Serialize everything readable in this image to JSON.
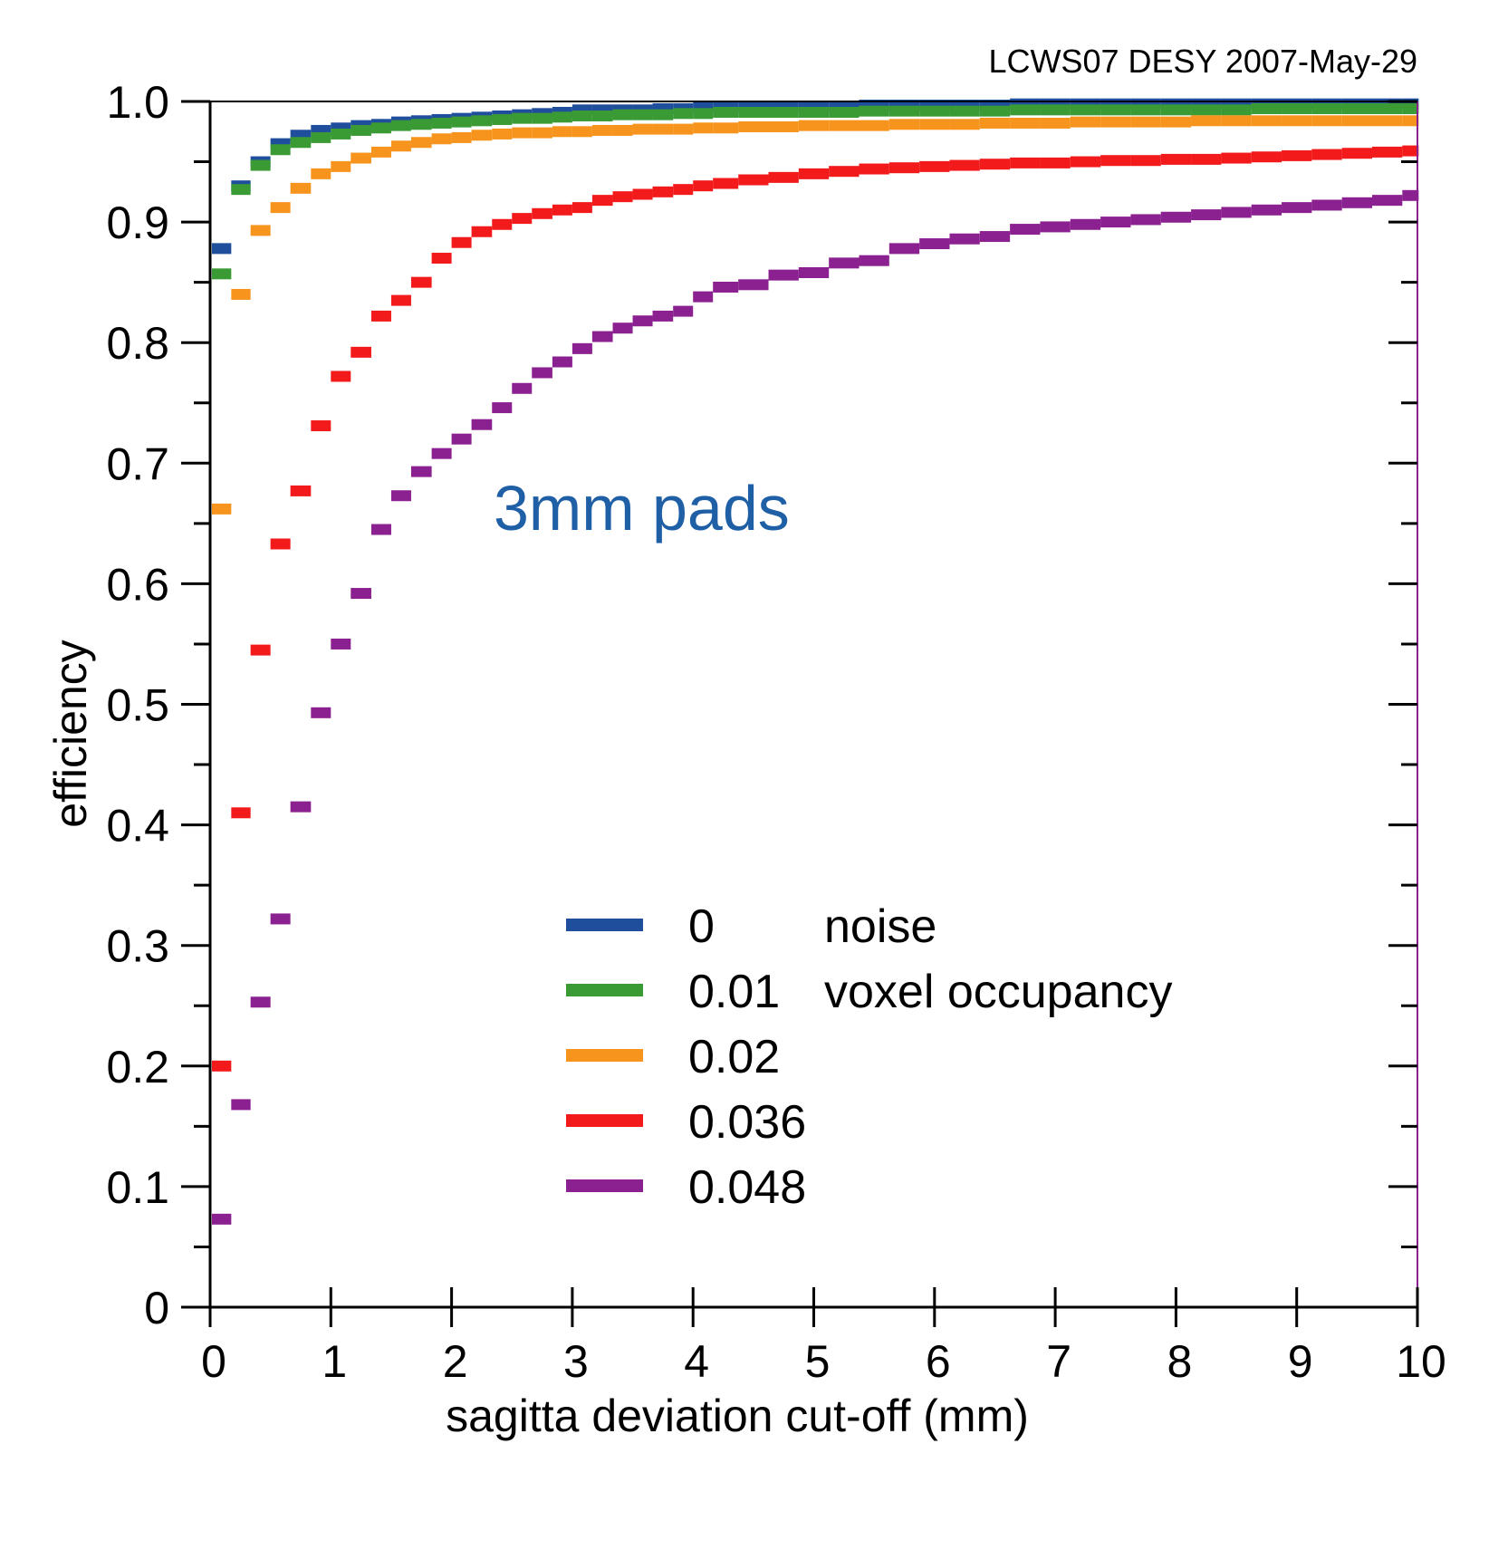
{
  "header": {
    "text": "LCWS07 DESY 2007-May-29"
  },
  "annotation": {
    "text": "3mm pads",
    "color": "#1F5FA6"
  },
  "chart_data": {
    "type": "scatter",
    "title": "",
    "xlabel": "sagitta deviation cut-off (mm)",
    "ylabel": "efficiency",
    "xlim": [
      0,
      10
    ],
    "ylim": [
      0,
      1.0
    ],
    "x_ticks": [
      "0",
      "1",
      "2",
      "3",
      "4",
      "5",
      "6",
      "7",
      "8",
      "9",
      "10"
    ],
    "y_ticks": [
      "0",
      "0.1",
      "0.2",
      "0.3",
      "0.4",
      "0.5",
      "0.6",
      "0.7",
      "0.8",
      "0.9",
      "1.0"
    ],
    "grid": false,
    "legend_position": "bottom-center",
    "legend_header": {
      "value": "0",
      "label": "noise",
      "label2": "voxel occupancy"
    },
    "x": [
      0.1,
      0.25,
      0.42,
      0.58,
      0.75,
      0.92,
      1.08,
      1.25,
      1.42,
      1.58,
      1.75,
      1.92,
      2.08,
      2.25,
      2.42,
      2.58,
      2.75,
      2.92,
      3.08,
      3.25,
      3.42,
      3.58,
      3.75,
      3.92,
      4.08,
      4.25,
      4.5,
      4.75,
      5.0,
      5.25,
      5.5,
      5.75,
      6.0,
      6.25,
      6.5,
      6.75,
      7.0,
      7.25,
      7.5,
      7.75,
      8.0,
      8.25,
      8.5,
      8.75,
      9.0,
      9.25,
      9.5,
      9.75,
      10.0
    ],
    "series": [
      {
        "name": "0",
        "color": "#1F4E9C",
        "values": [
          0.878,
          0.93,
          0.95,
          0.965,
          0.972,
          0.976,
          0.978,
          0.98,
          0.981,
          0.983,
          0.984,
          0.985,
          0.986,
          0.987,
          0.988,
          0.989,
          0.99,
          0.991,
          0.993,
          0.993,
          0.993,
          0.993,
          0.994,
          0.994,
          0.995,
          0.995,
          0.996,
          0.996,
          0.996,
          0.996,
          0.997,
          0.997,
          0.997,
          0.997,
          0.997,
          0.998,
          0.998,
          0.998,
          0.998,
          0.998,
          0.998,
          0.998,
          0.998,
          0.998,
          0.998,
          0.998,
          0.998,
          0.998,
          0.998
        ]
      },
      {
        "name": "0.01",
        "color": "#3A9B35",
        "values": [
          0.857,
          0.927,
          0.947,
          0.96,
          0.966,
          0.97,
          0.973,
          0.976,
          0.978,
          0.98,
          0.981,
          0.982,
          0.983,
          0.984,
          0.985,
          0.986,
          0.986,
          0.987,
          0.988,
          0.988,
          0.989,
          0.989,
          0.989,
          0.99,
          0.99,
          0.991,
          0.991,
          0.991,
          0.991,
          0.991,
          0.992,
          0.992,
          0.992,
          0.992,
          0.992,
          0.993,
          0.993,
          0.993,
          0.993,
          0.993,
          0.993,
          0.993,
          0.993,
          0.994,
          0.994,
          0.994,
          0.994,
          0.994,
          0.994
        ]
      },
      {
        "name": "0.02",
        "color": "#F7941D",
        "values": [
          0.662,
          0.84,
          0.893,
          0.912,
          0.928,
          0.94,
          0.946,
          0.953,
          0.958,
          0.963,
          0.966,
          0.969,
          0.97,
          0.972,
          0.973,
          0.974,
          0.974,
          0.975,
          0.975,
          0.976,
          0.976,
          0.977,
          0.977,
          0.977,
          0.978,
          0.978,
          0.979,
          0.979,
          0.98,
          0.98,
          0.98,
          0.981,
          0.981,
          0.981,
          0.982,
          0.982,
          0.982,
          0.983,
          0.983,
          0.983,
          0.983,
          0.984,
          0.984,
          0.984,
          0.984,
          0.984,
          0.984,
          0.984,
          0.984
        ]
      },
      {
        "name": "0.036",
        "color": "#F21A1A",
        "values": [
          0.2,
          0.41,
          0.545,
          0.633,
          0.677,
          0.731,
          0.772,
          0.792,
          0.822,
          0.835,
          0.85,
          0.87,
          0.883,
          0.892,
          0.898,
          0.903,
          0.907,
          0.91,
          0.912,
          0.918,
          0.921,
          0.923,
          0.925,
          0.927,
          0.93,
          0.932,
          0.935,
          0.937,
          0.94,
          0.942,
          0.944,
          0.945,
          0.946,
          0.947,
          0.948,
          0.949,
          0.949,
          0.95,
          0.951,
          0.951,
          0.952,
          0.952,
          0.953,
          0.954,
          0.955,
          0.956,
          0.957,
          0.958,
          0.959
        ]
      },
      {
        "name": "0.048",
        "color": "#8B2090",
        "values": [
          0.073,
          0.168,
          0.253,
          0.322,
          0.415,
          0.493,
          0.55,
          0.592,
          0.645,
          0.673,
          0.693,
          0.708,
          0.72,
          0.732,
          0.746,
          0.762,
          0.775,
          0.784,
          0.795,
          0.805,
          0.812,
          0.818,
          0.822,
          0.826,
          0.838,
          0.846,
          0.848,
          0.856,
          0.858,
          0.866,
          0.868,
          0.878,
          0.882,
          0.886,
          0.888,
          0.894,
          0.896,
          0.898,
          0.9,
          0.902,
          0.904,
          0.906,
          0.908,
          0.91,
          0.912,
          0.914,
          0.916,
          0.918,
          0.922
        ]
      }
    ]
  }
}
